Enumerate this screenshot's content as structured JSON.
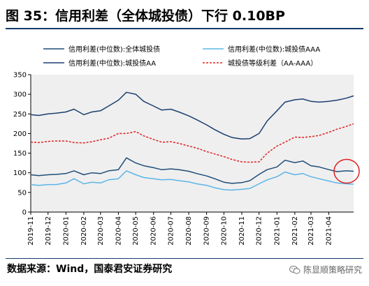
{
  "title": "图 35：信用利差（全体城投债）下行 0.10BP",
  "source": "数据来源：Wind，国泰君安证券研究",
  "watermark": "陈显顺策略研究",
  "icons": {
    "watermark": "wechat-icon",
    "highlight": "red-circle-highlight"
  },
  "colors": {
    "all": "#1f4e79",
    "aaa": "#5bb5e8",
    "aa": "#1a3f6f",
    "spread": "#e02020",
    "circle": "#e02020",
    "plot_bg": "#efefef"
  },
  "chart_data": {
    "type": "line",
    "ylim": [
      0,
      350
    ],
    "yticks": [
      0,
      50,
      100,
      150,
      200,
      250,
      300,
      350
    ],
    "xlim": [
      "2019-11-01",
      "2021-05-14"
    ],
    "xticks": [
      "2019-11",
      "2019-12",
      "2020-01",
      "2020-02",
      "2020-03",
      "2020-04",
      "2020-05",
      "2020-06",
      "2020-07",
      "2020-08",
      "2020-09",
      "2020-10",
      "2020-11",
      "2020-12",
      "2021-01",
      "2021-02",
      "2021-03",
      "2021-04"
    ],
    "grid": false,
    "legend_position": "top",
    "annotation": "red circle around the latest values",
    "dates": [
      "2019-11-01",
      "2019-11-15",
      "2019-12-01",
      "2019-12-15",
      "2020-01-01",
      "2020-01-15",
      "2020-02-01",
      "2020-02-15",
      "2020-03-01",
      "2020-03-15",
      "2020-04-01",
      "2020-04-15",
      "2020-05-01",
      "2020-05-15",
      "2020-06-01",
      "2020-06-15",
      "2020-07-01",
      "2020-07-15",
      "2020-08-01",
      "2020-08-15",
      "2020-09-01",
      "2020-09-15",
      "2020-10-01",
      "2020-10-15",
      "2020-11-01",
      "2020-11-15",
      "2020-12-01",
      "2020-12-15",
      "2021-01-01",
      "2021-01-15",
      "2021-02-01",
      "2021-02-15",
      "2021-03-01",
      "2021-03-15",
      "2021-04-01",
      "2021-04-15",
      "2021-05-01",
      "2021-05-14"
    ],
    "series": [
      {
        "name": "信用利差(中位数):全体城投债",
        "style": "solid",
        "color": "#1f4e79",
        "values": [
          95,
          93,
          95,
          96,
          98,
          105,
          95,
          100,
          98,
          105,
          108,
          138,
          125,
          118,
          113,
          108,
          110,
          108,
          104,
          98,
          92,
          85,
          76,
          73,
          75,
          80,
          96,
          108,
          115,
          132,
          126,
          130,
          118,
          115,
          108,
          103,
          105,
          104
        ]
      },
      {
        "name": "信用利差(中位数):城投债AAA",
        "style": "solid",
        "color": "#5bb5e8",
        "values": [
          70,
          68,
          70,
          70,
          74,
          85,
          72,
          76,
          74,
          82,
          85,
          105,
          95,
          88,
          85,
          82,
          83,
          80,
          77,
          72,
          68,
          62,
          57,
          56,
          58,
          60,
          72,
          82,
          90,
          102,
          95,
          98,
          90,
          85,
          79,
          74,
          72,
          71
        ]
      },
      {
        "name": "信用利差(中位数):城投债AA",
        "style": "solid",
        "color": "#1a3f6f",
        "values": [
          248,
          246,
          250,
          252,
          255,
          262,
          248,
          255,
          258,
          270,
          285,
          305,
          300,
          282,
          270,
          260,
          262,
          255,
          245,
          235,
          222,
          210,
          198,
          190,
          186,
          187,
          200,
          232,
          258,
          280,
          286,
          288,
          282,
          280,
          282,
          285,
          290,
          296
        ]
      },
      {
        "name": "城投债等级利差（AA-AAA）",
        "style": "dashed",
        "color": "#e02020",
        "values": [
          178,
          177,
          180,
          181,
          181,
          177,
          176,
          179,
          184,
          188,
          200,
          200,
          205,
          194,
          185,
          178,
          179,
          175,
          168,
          163,
          154,
          148,
          141,
          134,
          128,
          127,
          128,
          150,
          168,
          178,
          191,
          190,
          192,
          195,
          203,
          211,
          218,
          225
        ]
      }
    ]
  }
}
